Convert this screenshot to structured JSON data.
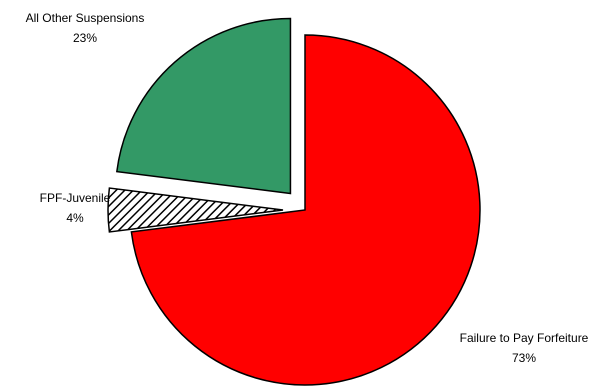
{
  "chart_data": {
    "type": "pie",
    "title": "",
    "slices": [
      {
        "label": "Failure to Pay Forfeiture",
        "value_label": "73%",
        "value": 73,
        "color": "#ff0000",
        "pattern": "none",
        "exploded": false
      },
      {
        "label": "FPF-Juvenile",
        "value_label": "4%",
        "value": 4,
        "color": "#ffffff",
        "pattern": "diagonal-hatch",
        "exploded": true
      },
      {
        "label": "All Other Suspensions",
        "value_label": "23%",
        "value": 23,
        "color": "#339966",
        "pattern": "none",
        "exploded": true
      }
    ],
    "legend": "none"
  }
}
